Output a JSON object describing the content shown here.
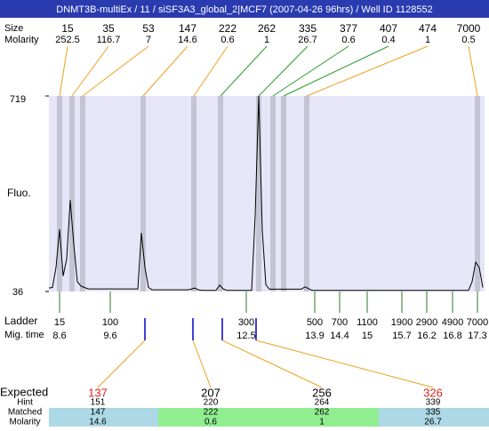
{
  "header": {
    "title": "DNMT3B-multiEx / 11 / siSF3A3_global_2|MCF7 (2007-04-26 96hrs) / Well ID 1128552"
  },
  "peaks": {
    "size_label": "Size",
    "molarity_label": "Molarity",
    "sizes": [
      15,
      35,
      53,
      147,
      222,
      262,
      335,
      377,
      407,
      474,
      7000
    ],
    "molarity": [
      252.5,
      116.7,
      7,
      14.6,
      0.6,
      1,
      26.7,
      0.6,
      0.4,
      1,
      0.5
    ]
  },
  "chart": {
    "type": "line",
    "y_label": "Fluo.",
    "ylim": [
      36,
      719
    ],
    "yticks": [
      36,
      719
    ],
    "values": [
      48,
      50,
      120,
      253,
      90,
      150,
      355,
      200,
      70,
      55,
      50,
      45,
      45,
      45,
      45,
      45,
      45,
      45,
      45,
      45,
      45,
      45,
      45,
      45,
      45,
      45,
      241,
      120,
      50,
      42,
      42,
      42,
      42,
      42,
      42,
      42,
      42,
      42,
      42,
      42,
      44,
      48,
      42,
      40,
      40,
      40,
      40,
      40,
      58,
      45,
      40,
      40,
      40,
      40,
      40,
      40,
      40,
      40,
      300,
      719,
      250,
      60,
      44,
      44,
      44,
      44,
      44,
      44,
      44,
      44,
      44,
      44,
      52,
      46,
      40,
      40,
      40,
      40,
      40,
      40,
      40,
      40,
      40,
      40,
      40,
      40,
      40,
      40,
      40,
      40,
      40,
      40,
      40,
      40,
      40,
      40,
      40,
      40,
      40,
      40,
      40,
      40,
      40,
      40,
      40,
      40,
      40,
      40,
      40,
      40,
      40,
      40,
      40,
      40,
      40,
      40,
      40,
      40,
      40,
      70,
      138,
      120,
      50
    ]
  },
  "ladder": {
    "label": "Ladder",
    "time_label": "Mig. time",
    "sizes": [
      15,
      100,
      300,
      500,
      700,
      1100,
      1900,
      2900,
      4900,
      7000
    ],
    "times": [
      8.6,
      9.6,
      12.5,
      13.9,
      14.4,
      15,
      15.7,
      16.2,
      16.8,
      17.3
    ]
  },
  "table": {
    "row_labels": [
      "Expected",
      "Hint",
      "Matched",
      "Molarity"
    ],
    "expected": [
      137,
      207,
      256,
      326
    ],
    "hint": [
      151,
      220,
      264,
      339
    ],
    "matched": [
      147,
      222,
      262,
      335
    ],
    "molarity": [
      14.6,
      0.6,
      1,
      26.7
    ]
  }
}
